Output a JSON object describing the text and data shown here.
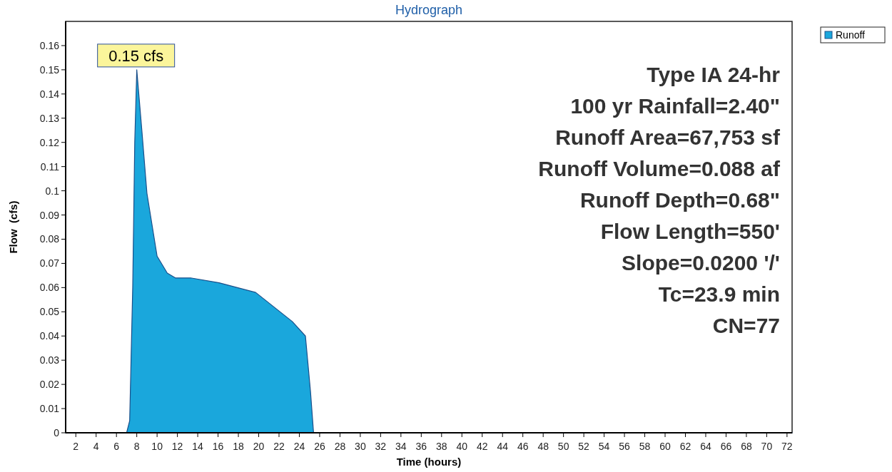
{
  "chart_data": {
    "type": "area",
    "title": "Hydrograph",
    "xlabel": "Time  (hours)",
    "ylabel": "Flow  (cfs)",
    "xlim": [
      1,
      72.5
    ],
    "xticks": [
      2,
      4,
      6,
      8,
      10,
      12,
      14,
      16,
      18,
      20,
      22,
      24,
      26,
      28,
      30,
      32,
      34,
      36,
      38,
      40,
      42,
      44,
      46,
      48,
      50,
      52,
      54,
      56,
      58,
      60,
      62,
      64,
      66,
      68,
      70,
      72
    ],
    "ylim": [
      0,
      0.17
    ],
    "yticks": [
      0,
      0.01,
      0.02,
      0.03,
      0.04,
      0.05,
      0.06,
      0.07,
      0.08,
      0.09,
      0.1,
      0.11,
      0.12,
      0.13,
      0.14,
      0.15,
      0.16
    ],
    "grid": false,
    "legend": "top right",
    "series": [
      {
        "name": "Runoff",
        "color": "#1aa7dc",
        "x": [
          1,
          7,
          7.3,
          7.6,
          7.8,
          8,
          8.5,
          9,
          10,
          11,
          11.8,
          13.3,
          16.1,
          19.7,
          23.3,
          24.6,
          25.1,
          25.4,
          26,
          72.5
        ],
        "values": [
          0,
          0,
          0.005,
          0.06,
          0.12,
          0.15,
          0.125,
          0.099,
          0.073,
          0.066,
          0.064,
          0.064,
          0.062,
          0.058,
          0.046,
          0.04,
          0.017,
          0,
          0,
          0
        ]
      }
    ],
    "annotations": [
      {
        "text": "0.15 cfs",
        "x": 8,
        "y": 0.15
      },
      "Type IA 24-hr",
      "100 yr Rainfall=2.40\"",
      "Runoff Area=67,753 sf",
      "Runoff Volume=0.088 af",
      "Runoff Depth=0.68\"",
      "Flow Length=550'",
      "Slope=0.0200 '/'",
      "Tc=23.9 min",
      "CN=77"
    ]
  }
}
